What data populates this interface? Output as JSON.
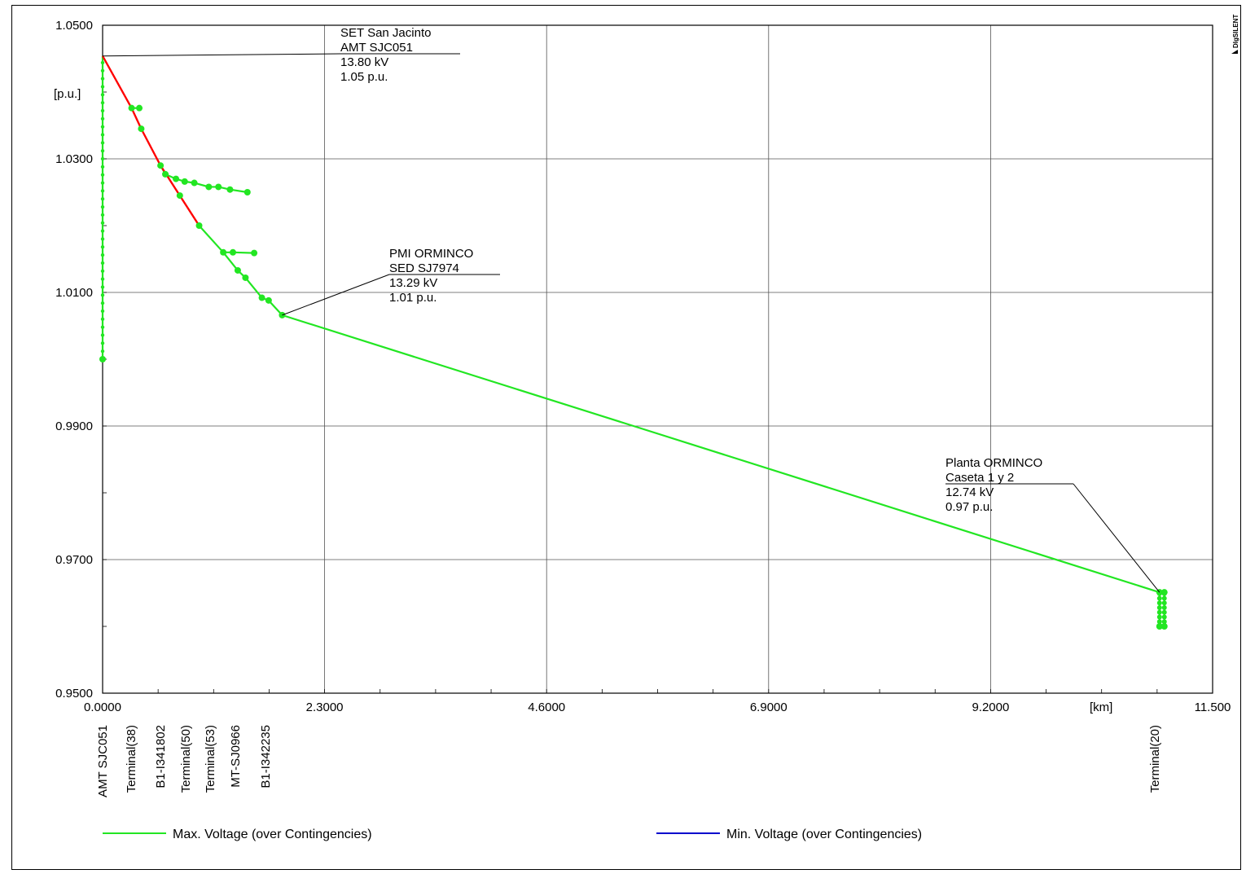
{
  "chart_data": {
    "type": "line",
    "ylabel": "[p.u.]",
    "xlabel": "[km]",
    "xlim": [
      0,
      11.5
    ],
    "ylim": [
      0.95,
      1.05
    ],
    "x_ticks": [
      "0.0000",
      "2.3000",
      "4.6000",
      "6.9000",
      "9.2000",
      "11.500"
    ],
    "y_ticks": [
      "0.9500",
      "0.9700",
      "0.9900",
      "1.0100",
      "1.0300",
      "1.0500"
    ],
    "x_tick_values": [
      0,
      2.3,
      4.6,
      6.9,
      9.2,
      11.5
    ],
    "y_tick_values": [
      0.95,
      0.97,
      0.99,
      1.01,
      1.03,
      1.05
    ],
    "grid": true,
    "legend_position": "bottom",
    "series": [
      {
        "name": "Max. Voltage (over Contingencies)",
        "color": "#22e622",
        "values": [
          {
            "x": 0.0,
            "y": 1.0454
          },
          {
            "x": 0.3,
            "y": 1.0376
          },
          {
            "x": 0.4,
            "y": 1.0345
          },
          {
            "x": 0.6,
            "y": 1.029
          },
          {
            "x": 0.8,
            "y": 1.0245
          },
          {
            "x": 1.0,
            "y": 1.02
          },
          {
            "x": 1.25,
            "y": 1.016
          },
          {
            "x": 1.4,
            "y": 1.0133
          },
          {
            "x": 1.48,
            "y": 1.0122
          },
          {
            "x": 1.65,
            "y": 1.0092
          },
          {
            "x": 1.72,
            "y": 1.0088
          },
          {
            "x": 1.86,
            "y": 1.0066
          },
          {
            "x": 5.5,
            "y": 0.99
          },
          {
            "x": 10.95,
            "y": 0.9651
          }
        ]
      },
      {
        "name": "Min. Voltage (over Contingencies)",
        "color": "#0000cc",
        "values": []
      }
    ],
    "branches": [
      {
        "color": "#ff0000",
        "values": [
          {
            "x": 0.0,
            "y": 1.0454
          },
          {
            "x": 0.3,
            "y": 1.0376
          },
          {
            "x": 0.4,
            "y": 1.0345
          },
          {
            "x": 0.6,
            "y": 1.029
          },
          {
            "x": 0.8,
            "y": 1.0245
          },
          {
            "x": 1.0,
            "y": 1.02
          }
        ]
      },
      {
        "color": "#22e622",
        "values": [
          {
            "x": 0.0,
            "y": 1.0454
          },
          {
            "x": 0.0,
            "y": 1.0
          }
        ]
      },
      {
        "color": "#22e622",
        "values": [
          {
            "x": 0.3,
            "y": 1.0376
          },
          {
            "x": 0.38,
            "y": 1.0376
          }
        ]
      },
      {
        "color": "#22e622",
        "values": [
          {
            "x": 0.6,
            "y": 1.029
          },
          {
            "x": 0.65,
            "y": 1.0277
          },
          {
            "x": 0.76,
            "y": 1.027
          },
          {
            "x": 0.85,
            "y": 1.0266
          },
          {
            "x": 0.95,
            "y": 1.0264
          },
          {
            "x": 1.1,
            "y": 1.0258
          },
          {
            "x": 1.2,
            "y": 1.0258
          },
          {
            "x": 1.32,
            "y": 1.0254
          },
          {
            "x": 1.5,
            "y": 1.025
          }
        ]
      },
      {
        "color": "#22e622",
        "values": [
          {
            "x": 1.25,
            "y": 1.016
          },
          {
            "x": 1.35,
            "y": 1.016
          },
          {
            "x": 1.57,
            "y": 1.0159
          }
        ]
      },
      {
        "color": "#22e622",
        "values": [
          {
            "x": 10.95,
            "y": 0.9651
          },
          {
            "x": 10.95,
            "y": 0.96
          }
        ]
      },
      {
        "color": "#22e622",
        "values": [
          {
            "x": 11.0,
            "y": 0.9651
          },
          {
            "x": 11.0,
            "y": 0.96
          }
        ]
      }
    ],
    "markers": [
      {
        "x": 0.0,
        "y": 1.0
      },
      {
        "x": 0.3,
        "y": 1.0376
      },
      {
        "x": 0.38,
        "y": 1.0376
      },
      {
        "x": 0.4,
        "y": 1.0345
      },
      {
        "x": 0.6,
        "y": 1.029
      },
      {
        "x": 0.65,
        "y": 1.0277
      },
      {
        "x": 0.76,
        "y": 1.027
      },
      {
        "x": 0.8,
        "y": 1.0245
      },
      {
        "x": 0.85,
        "y": 1.0266
      },
      {
        "x": 0.95,
        "y": 1.0264
      },
      {
        "x": 1.0,
        "y": 1.02
      },
      {
        "x": 1.1,
        "y": 1.0258
      },
      {
        "x": 1.2,
        "y": 1.0258
      },
      {
        "x": 1.25,
        "y": 1.016
      },
      {
        "x": 1.32,
        "y": 1.0254
      },
      {
        "x": 1.35,
        "y": 1.016
      },
      {
        "x": 1.4,
        "y": 1.0133
      },
      {
        "x": 1.48,
        "y": 1.0122
      },
      {
        "x": 1.5,
        "y": 1.025
      },
      {
        "x": 1.57,
        "y": 1.0159
      },
      {
        "x": 1.65,
        "y": 1.0092
      },
      {
        "x": 1.72,
        "y": 1.0088
      },
      {
        "x": 1.86,
        "y": 1.0066
      },
      {
        "x": 10.95,
        "y": 0.96
      },
      {
        "x": 11.0,
        "y": 0.96
      },
      {
        "x": 10.95,
        "y": 0.9651
      },
      {
        "x": 11.0,
        "y": 0.9651
      }
    ],
    "annotations": [
      {
        "x": 0.0,
        "y": 1.0454,
        "lines": [
          "SET San Jacinto",
          "AMT SJC051",
          "13.80 kV",
          "1.05 p.u."
        ]
      },
      {
        "x": 1.86,
        "y": 1.0066,
        "lines": [
          "PMI ORMINCO",
          "SED SJ7974",
          "13.29 kV",
          "1.01 p.u."
        ]
      },
      {
        "x": 10.95,
        "y": 0.9651,
        "lines": [
          "Planta ORMINCO",
          "Caseta 1 y 2",
          "12.74 kV",
          "0.97 p.u."
        ]
      }
    ],
    "node_labels": [
      {
        "x": 0.0,
        "label": "AMT SJC051"
      },
      {
        "x": 0.3,
        "label": "Terminal(38)"
      },
      {
        "x": 0.6,
        "label": "B1-I341802"
      },
      {
        "x": 0.85,
        "label": "Terminal(50)"
      },
      {
        "x": 1.1,
        "label": "Terminal(53)"
      },
      {
        "x": 1.35,
        "label": "MT-SJ0966"
      },
      {
        "x": 1.65,
        "label": "B1-I342235"
      },
      {
        "x": 10.95,
        "label": "Terminal(20)"
      }
    ]
  },
  "brand": "DIgSILENT"
}
